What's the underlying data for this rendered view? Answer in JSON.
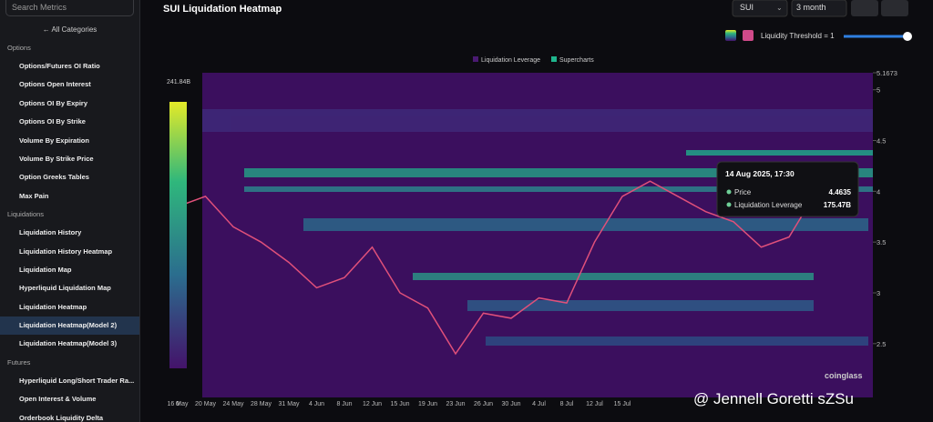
{
  "sidebar": {
    "search": "Search Metrics",
    "back": "All Categories",
    "sections": [
      {
        "title": "Options",
        "items": [
          "Options/Futures OI Ratio",
          "Options Open Interest",
          "Options OI By Expiry",
          "Options OI By Strike",
          "Volume By Expiration",
          "Volume By Strike Price",
          "Option Greeks Tables",
          "Max Pain"
        ]
      },
      {
        "title": "Liquidations",
        "items": [
          "Liquidation History",
          "Liquidation History Heatmap",
          "Liquidation Map",
          "Hyperliquid Liquidation Map",
          "Liquidation Heatmap",
          "Liquidation Heatmap(Model 2)",
          "Liquidation Heatmap(Model 3)"
        ]
      },
      {
        "title": "Futures",
        "items": [
          "Hyperliquid Long/Short Trader Ra...",
          "Open Interest & Volume",
          "Orderbook Liquidity Delta"
        ]
      }
    ]
  },
  "header": {
    "title": "SUI Liquidation Heatmap",
    "symbol": "SUI",
    "range": "3 month",
    "threshold": "Liquidity Threshold = 1"
  },
  "chart_data": {
    "type": "heatmap",
    "x": [
      "16 May",
      "20 May",
      "24 May",
      "28 May",
      "31 May",
      "4 Jun",
      "8 Jun",
      "12 Jun",
      "15 Jun",
      "19 Jun",
      "23 Jun",
      "26 Jun",
      "30 Jun",
      "4 Jul",
      "8 Jul",
      "12 Jul",
      "15 Jul",
      null,
      null,
      null,
      null,
      null,
      null,
      null,
      null
    ],
    "series": [
      {
        "name": "Liquidation Leverage",
        "color": "#4a1a72"
      },
      {
        "name": "Supercharts",
        "color": "#1fb58d",
        "values": [
          3.85,
          3.95,
          3.65,
          3.5,
          3.3,
          3.05,
          3.15,
          3.45,
          3.0,
          2.85,
          2.4,
          2.8,
          2.75,
          2.95,
          2.9,
          3.5,
          3.95,
          4.1,
          3.95,
          3.8,
          3.7,
          3.45,
          3.55,
          4.0,
          4.1
        ]
      }
    ],
    "ylim": [
      1.97,
      5.1673
    ],
    "yticks": [
      2.5,
      3,
      3.5,
      4,
      4.5,
      5,
      5.1673
    ],
    "colorbar": {
      "min": 0,
      "max": {
        "value": 241840000000,
        "label": "241.84B"
      }
    }
  },
  "tooltip": {
    "time": "14 Aug 2025, 17:30",
    "rows": [
      {
        "label": "Price",
        "value": 4.4635
      },
      {
        "label": "Liquidation Leverage",
        "value": "175.47B"
      }
    ]
  },
  "watermark": {
    "brand": "coinglass",
    "overlay": "@ Jennell Goretti sZSu"
  }
}
